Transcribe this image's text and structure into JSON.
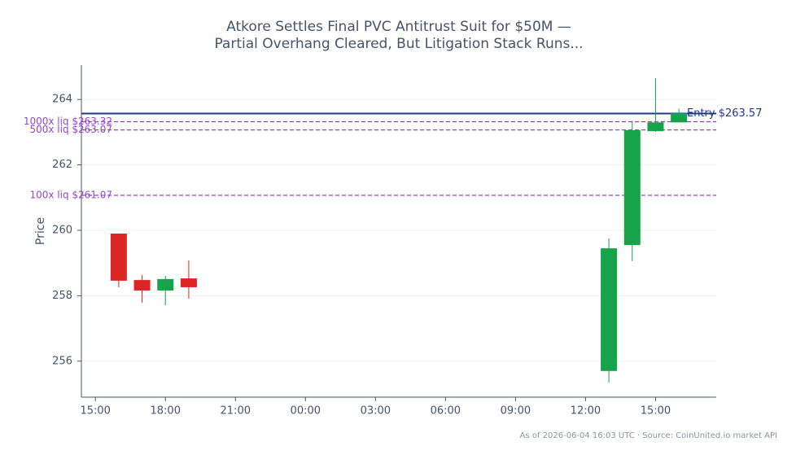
{
  "chart_data": {
    "type": "candlestick",
    "title": [
      "Atkore Settles Final PVC Antitrust Suit for $50M —",
      "Partial Overhang Cleared, But Litigation Stack Runs..."
    ],
    "ylabel": "Price",
    "footer": "As of 2026-06-04 16:03 UTC · Source: CoinUnited.io market API",
    "x": [
      16,
      17,
      18,
      19,
      37,
      38,
      39,
      40
    ],
    "open": [
      259.9,
      258.48,
      258.16,
      258.53,
      255.7,
      259.55,
      263.03,
      263.3
    ],
    "high": [
      259.9,
      258.63,
      258.61,
      259.08,
      259.75,
      263.35,
      264.65,
      263.72
    ],
    "low": [
      258.26,
      257.79,
      257.71,
      257.91,
      255.35,
      259.06,
      263.01,
      263.3
    ],
    "close": [
      258.46,
      258.16,
      258.51,
      258.26,
      259.45,
      263.06,
      263.3,
      263.58
    ],
    "up_color": "#16a34a",
    "down_color": "#dc2626",
    "xlim": [
      14.4,
      41.6
    ],
    "xticks": [
      {
        "value": 15,
        "label": "15:00"
      },
      {
        "value": 18,
        "label": "18:00"
      },
      {
        "value": 21,
        "label": "21:00"
      },
      {
        "value": 24,
        "label": "00:00"
      },
      {
        "value": 27,
        "label": "03:00"
      },
      {
        "value": 30,
        "label": "06:00"
      },
      {
        "value": 33,
        "label": "09:00"
      },
      {
        "value": 36,
        "label": "12:00"
      },
      {
        "value": 39,
        "label": "15:00"
      }
    ],
    "ylim": [
      254.9,
      265.05
    ],
    "yticks": [
      256,
      258,
      260,
      262,
      264
    ],
    "grid": true,
    "hlines": [
      {
        "value": 263.57,
        "label": "Entry $263.57",
        "color": "#1e3a8a",
        "style": "solid"
      },
      {
        "value": 263.32,
        "label": "1000x liq $263.32",
        "color": "#9747c9",
        "style": "dashed"
      },
      {
        "value": 263.07,
        "label": "500x liq $263.07",
        "color": "#9747c9",
        "style": "dashed"
      },
      {
        "value": 261.07,
        "label": "100x liq $261.07",
        "color": "#9747c9",
        "style": "dashed"
      }
    ]
  }
}
